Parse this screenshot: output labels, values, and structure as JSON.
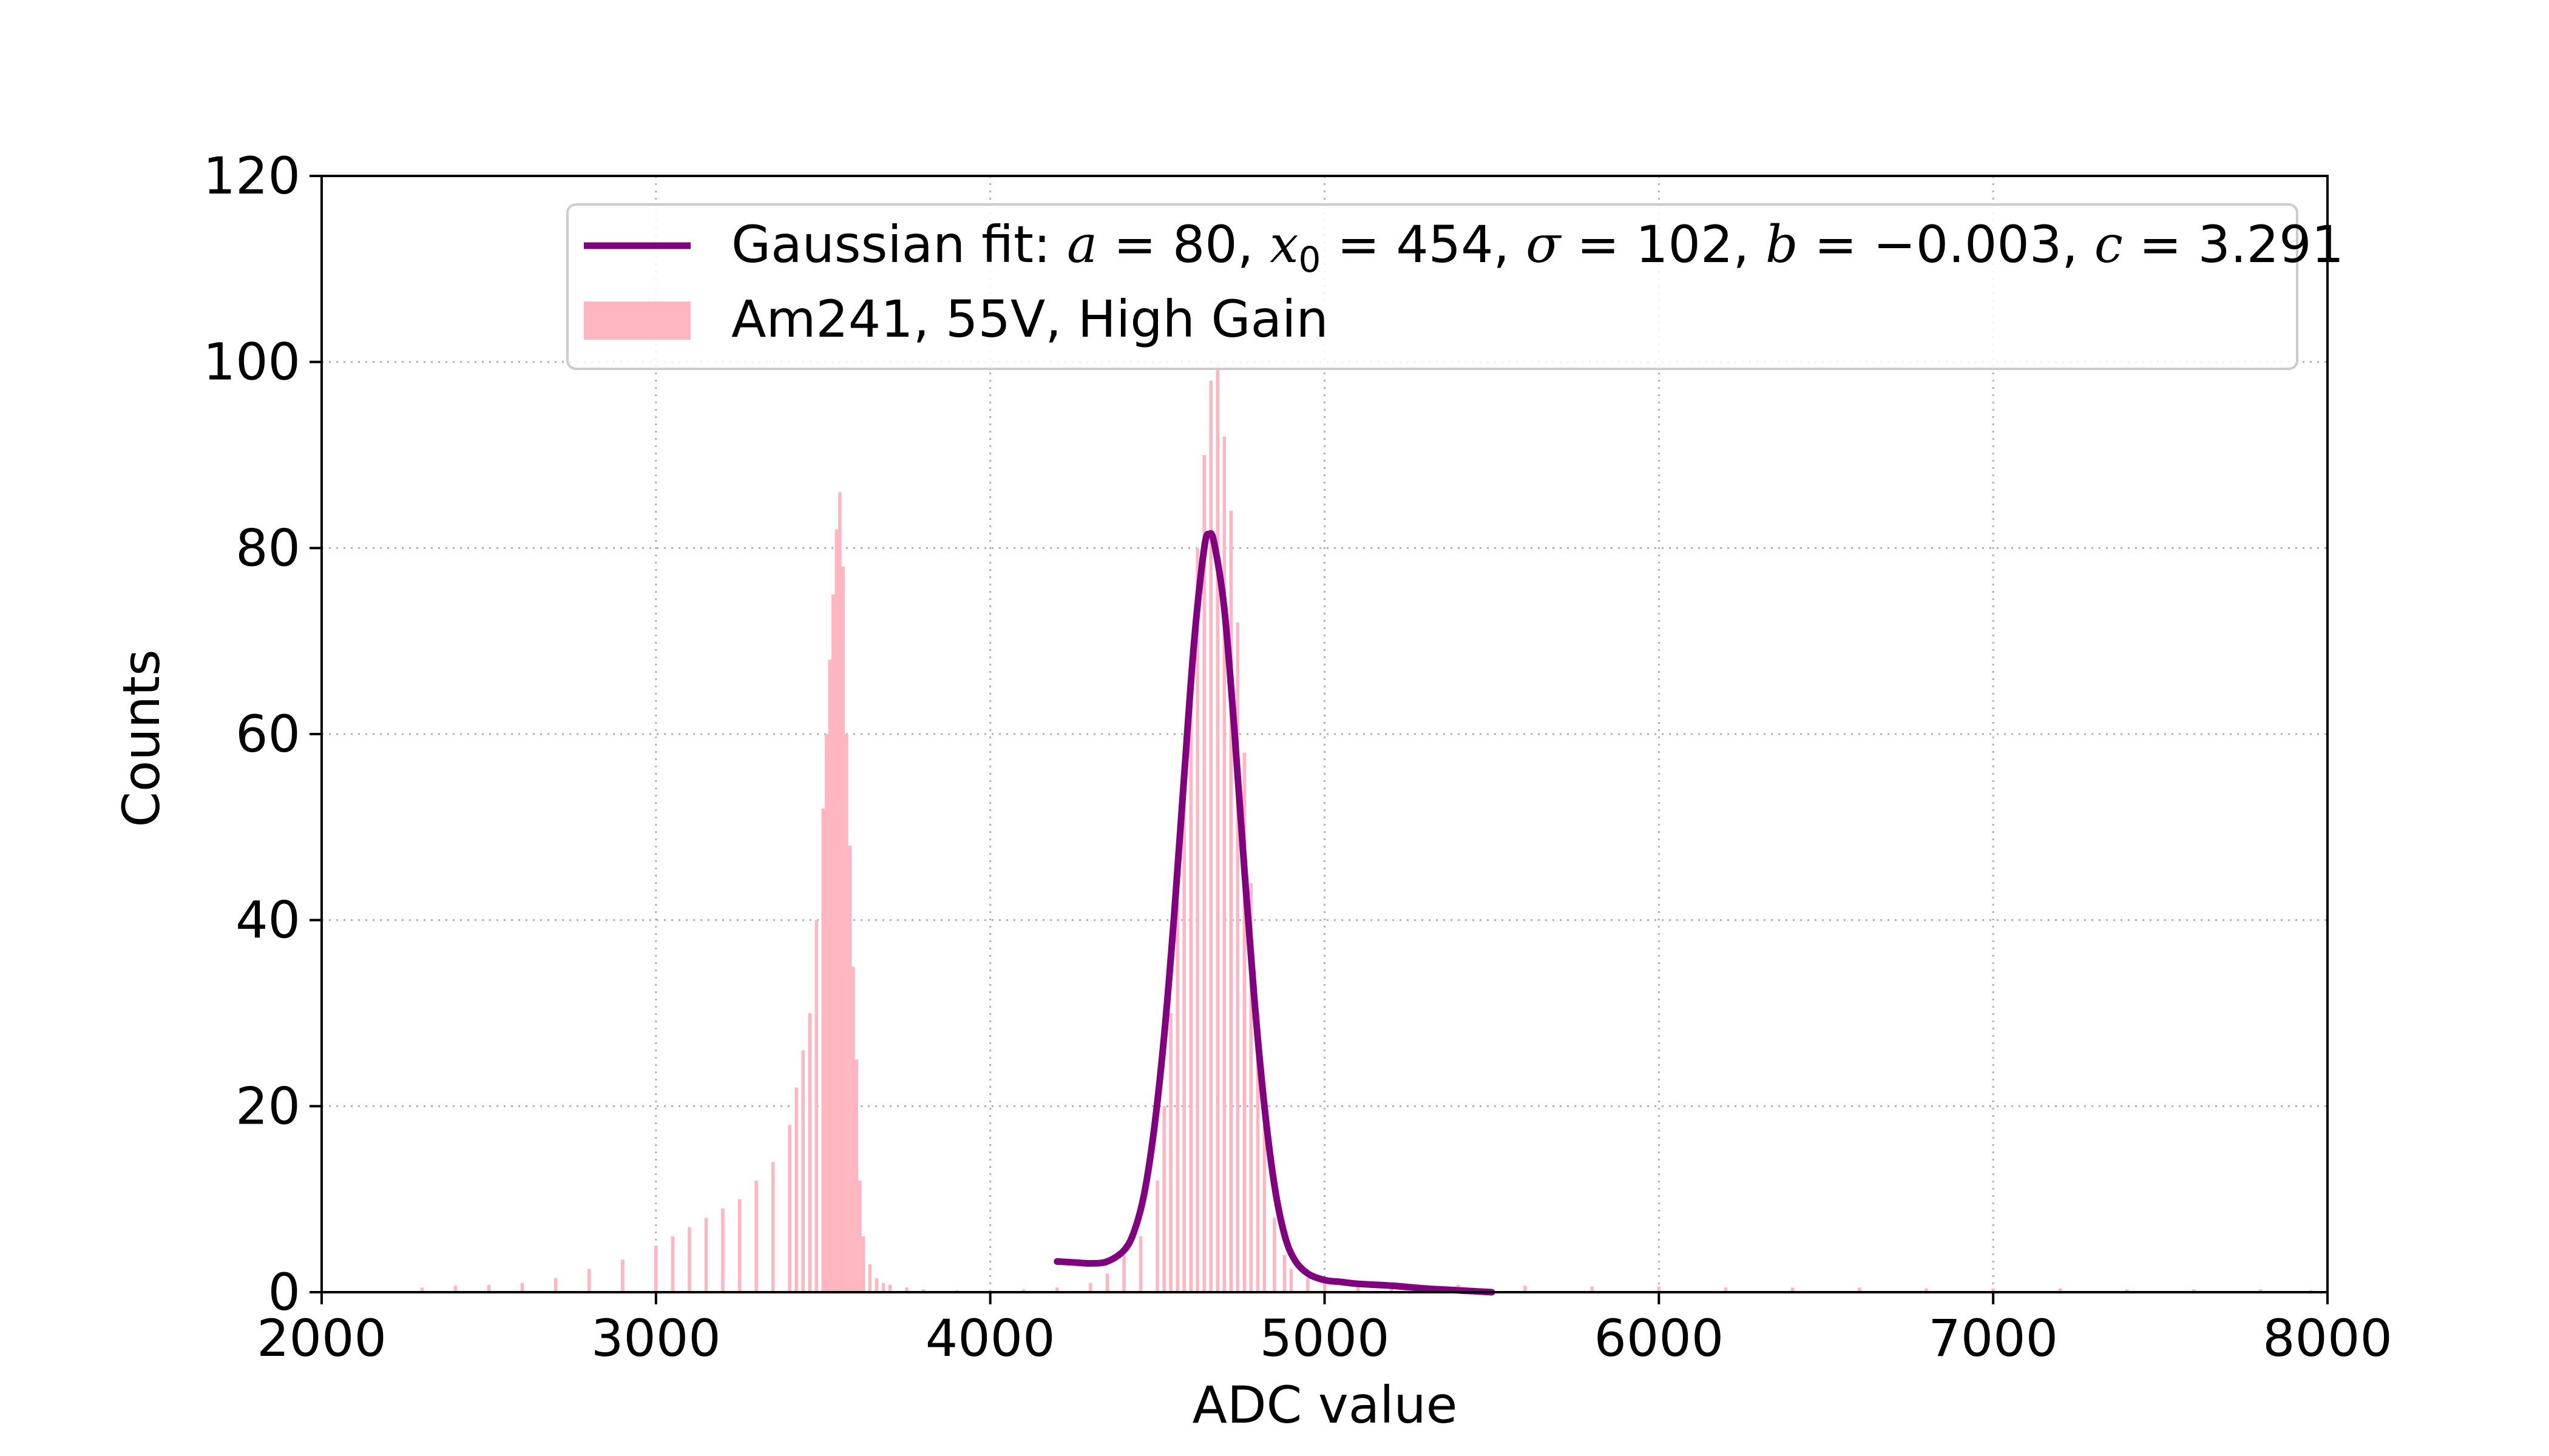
{
  "chart_data": {
    "type": "bar",
    "title": "",
    "xlabel": "ADC value",
    "ylabel": "Counts",
    "xlim": [
      2000,
      8000
    ],
    "ylim": [
      0,
      120
    ],
    "xticks": [
      "2000",
      "3000",
      "4000",
      "5000",
      "6000",
      "7000",
      "8000"
    ],
    "yticks": [
      "0",
      "20",
      "40",
      "60",
      "80",
      "100",
      "120"
    ],
    "grid": true,
    "legend_position": "top-right",
    "colors": {
      "histogram": "#ffb6c1",
      "fit": "#800080",
      "grid": "#b0b0b0"
    },
    "histogram": {
      "name": "Am241, 55V, High Gain",
      "bin_width": 10,
      "x": [
        2300,
        2400,
        2500,
        2600,
        2700,
        2800,
        2900,
        3000,
        3050,
        3100,
        3150,
        3200,
        3250,
        3300,
        3350,
        3400,
        3420,
        3440,
        3460,
        3480,
        3500,
        3510,
        3520,
        3530,
        3540,
        3550,
        3560,
        3570,
        3580,
        3590,
        3600,
        3610,
        3620,
        3640,
        3660,
        3680,
        3700,
        3750,
        3800,
        3900,
        4000,
        4100,
        4200,
        4300,
        4350,
        4400,
        4450,
        4500,
        4520,
        4540,
        4560,
        4580,
        4600,
        4620,
        4640,
        4660,
        4680,
        4700,
        4720,
        4740,
        4760,
        4780,
        4800,
        4820,
        4850,
        4880,
        4900,
        4950,
        5000,
        5100,
        5200,
        5400,
        5600,
        5800,
        6000,
        6200,
        6400,
        6600,
        6800,
        7000,
        7200,
        7400,
        7600,
        7800,
        7950
      ],
      "values": [
        0.5,
        0.7,
        0.8,
        1,
        1.5,
        2.5,
        3.5,
        5,
        6,
        7,
        8,
        9,
        10,
        12,
        14,
        18,
        22,
        26,
        30,
        40,
        52,
        60,
        68,
        75,
        82,
        86,
        78,
        60,
        48,
        35,
        25,
        12,
        6,
        3,
        1.5,
        1,
        0.8,
        0.5,
        0.3,
        0.2,
        0.2,
        0.3,
        0.5,
        1,
        2,
        4,
        6,
        12,
        20,
        30,
        42,
        55,
        68,
        80,
        90,
        98,
        100,
        92,
        84,
        72,
        58,
        44,
        30,
        18,
        8,
        4,
        2.5,
        1.5,
        1.2,
        1,
        1,
        0.8,
        0.7,
        0.6,
        0.6,
        0.5,
        0.5,
        0.5,
        0.4,
        0.4,
        0.4,
        0.3,
        0.3,
        0.3,
        0.2
      ]
    },
    "fit": {
      "name": "Gaussian fit",
      "label_prefix": "Gaussian fit: ",
      "params": {
        "a": "80",
        "x0": "454",
        "sigma": "102",
        "b": "−0.003",
        "c": "3.291"
      },
      "x": [
        4200,
        4250,
        4300,
        4350,
        4400,
        4430,
        4460,
        4490,
        4520,
        4550,
        4580,
        4610,
        4640,
        4655,
        4670,
        4700,
        4730,
        4760,
        4790,
        4820,
        4850,
        4880,
        4910,
        4950,
        5000,
        5050,
        5100,
        5200,
        5300,
        5400,
        5500
      ],
      "values": [
        3.3,
        3.2,
        3.1,
        3.3,
        4.5,
        6.5,
        10.5,
        17.5,
        27.5,
        40.5,
        55.5,
        70,
        80,
        81.5,
        80.5,
        73.5,
        60.5,
        45.5,
        31.5,
        20,
        11.5,
        6.2,
        3.5,
        2,
        1.3,
        1.1,
        0.9,
        0.7,
        0.4,
        0.2,
        0
      ]
    }
  }
}
